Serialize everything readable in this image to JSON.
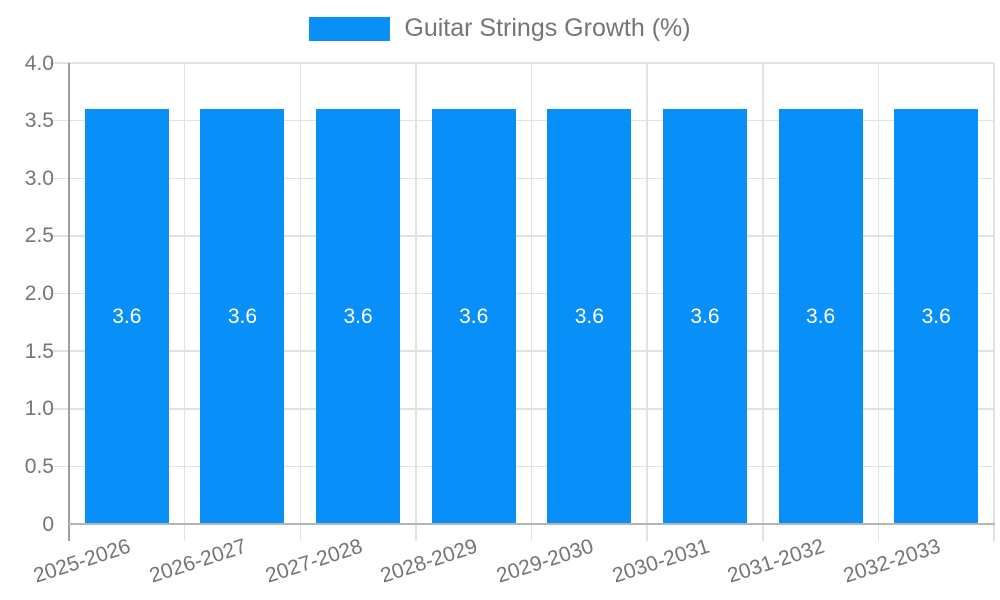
{
  "chart_data": {
    "type": "bar",
    "title": "",
    "legend": {
      "label": "Guitar Strings Growth (%)",
      "position": "top-center"
    },
    "categories": [
      "2025-2026",
      "2026-2027",
      "2027-2028",
      "2028-2029",
      "2029-2030",
      "2030-2031",
      "2031-2032",
      "2032-2033"
    ],
    "values": [
      3.6,
      3.6,
      3.6,
      3.6,
      3.6,
      3.6,
      3.6,
      3.6
    ],
    "bar_labels": [
      "3.6",
      "3.6",
      "3.6",
      "3.6",
      "3.6",
      "3.6",
      "3.6",
      "3.6"
    ],
    "xlabel": "",
    "ylabel": "",
    "ylim": [
      0,
      4
    ],
    "yticks": [
      {
        "value": 0,
        "label": "0"
      },
      {
        "value": 0.5,
        "label": "0.5"
      },
      {
        "value": 1.0,
        "label": "1.0"
      },
      {
        "value": 1.5,
        "label": "1.5"
      },
      {
        "value": 2.0,
        "label": "2.0"
      },
      {
        "value": 2.5,
        "label": "2.5"
      },
      {
        "value": 3.0,
        "label": "3.0"
      },
      {
        "value": 3.5,
        "label": "3.5"
      },
      {
        "value": 4.0,
        "label": "4.0"
      }
    ],
    "grid": true,
    "x_label_rotation_deg": -18,
    "colors": {
      "bar": "#0890f8",
      "bar_label": "#ffffff",
      "grid": "#e2e2e2",
      "axis_line": "#9e9e9e",
      "baseline": "#b5b5b5",
      "tick_text": "#757575",
      "legend_text": "#757575",
      "background": "#ffffff"
    }
  }
}
